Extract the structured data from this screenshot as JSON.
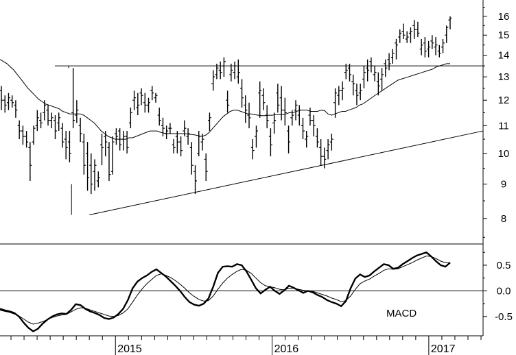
{
  "chart_data": [
    {
      "type": "ohlc",
      "panel": "price",
      "y_scale": "log",
      "ylim": [
        7.4,
        16.8
      ],
      "y_ticks": [
        8,
        9,
        10,
        11,
        12,
        13,
        14,
        15,
        16
      ],
      "x_range": [
        "2014-04",
        "2017-05"
      ],
      "x_ticks": [
        "2015",
        "2016",
        "2017"
      ],
      "ohlc": [
        [
          12.4,
          12.6,
          11.6,
          12.0
        ],
        [
          12.0,
          12.2,
          11.5,
          11.8
        ],
        [
          11.9,
          12.3,
          11.6,
          12.1
        ],
        [
          12.0,
          12.2,
          11.7,
          11.9
        ],
        [
          11.8,
          12.0,
          11.3,
          11.6
        ],
        [
          11.0,
          11.2,
          10.5,
          10.8
        ],
        [
          10.8,
          11.0,
          10.3,
          10.6
        ],
        [
          10.6,
          10.8,
          10.2,
          10.4
        ],
        [
          10.2,
          10.4,
          9.1,
          9.6
        ],
        [
          10.4,
          11.0,
          10.3,
          10.9
        ],
        [
          11.0,
          11.6,
          10.8,
          11.3
        ],
        [
          11.2,
          11.5,
          10.9,
          11.1
        ],
        [
          11.5,
          12.0,
          11.2,
          11.8
        ],
        [
          11.6,
          11.8,
          11.0,
          11.2
        ],
        [
          11.2,
          11.5,
          10.9,
          11.3
        ],
        [
          11.2,
          11.4,
          10.5,
          10.8
        ],
        [
          11.1,
          11.5,
          10.8,
          11.3
        ],
        [
          10.9,
          11.1,
          10.2,
          10.4
        ],
        [
          10.5,
          10.8,
          9.8,
          10.2
        ],
        [
          10.4,
          10.8,
          9.7,
          10.0
        ],
        [
          11.5,
          13.4,
          10.9,
          11.2
        ],
        [
          11.4,
          12.0,
          11.1,
          11.6
        ],
        [
          11.0,
          11.3,
          10.4,
          10.7
        ],
        [
          10.4,
          10.7,
          9.3,
          9.6
        ],
        [
          10.0,
          10.4,
          8.8,
          9.2
        ],
        [
          9.6,
          10.0,
          8.7,
          9.0
        ],
        [
          9.4,
          9.8,
          8.8,
          9.6
        ],
        [
          9.1,
          9.4,
          8.9,
          9.2
        ],
        [
          10.3,
          10.7,
          9.6,
          10.2
        ],
        [
          10.6,
          10.8,
          9.9,
          10.4
        ],
        [
          10.2,
          10.4,
          9.1,
          9.3
        ],
        [
          9.4,
          10.6,
          9.3,
          10.4
        ],
        [
          10.7,
          10.9,
          10.3,
          10.6
        ],
        [
          10.8,
          10.9,
          10.1,
          10.3
        ],
        [
          10.5,
          10.8,
          10.1,
          10.6
        ],
        [
          10.6,
          10.8,
          10.0,
          10.2
        ],
        [
          11.1,
          11.7,
          10.9,
          11.5
        ],
        [
          12.0,
          12.4,
          11.6,
          12.1
        ],
        [
          11.7,
          12.3,
          11.4,
          11.8
        ],
        [
          12.3,
          12.5,
          11.8,
          12.2
        ],
        [
          11.9,
          12.3,
          11.5,
          11.8
        ],
        [
          11.8,
          12.1,
          11.5,
          11.9
        ],
        [
          12.4,
          12.6,
          12.0,
          12.3
        ],
        [
          12.1,
          12.3,
          11.9,
          12.2
        ],
        [
          11.4,
          11.7,
          11.0,
          11.2
        ],
        [
          11.0,
          11.3,
          10.6,
          10.9
        ],
        [
          10.7,
          11.0,
          10.5,
          10.8
        ],
        [
          10.9,
          11.1,
          10.7,
          10.9
        ],
        [
          10.3,
          10.5,
          10.0,
          10.2
        ],
        [
          10.6,
          10.8,
          10.0,
          10.4
        ],
        [
          10.4,
          10.6,
          9.9,
          10.1
        ],
        [
          10.8,
          11.2,
          10.6,
          10.9
        ],
        [
          10.6,
          10.9,
          10.3,
          10.7
        ],
        [
          10.2,
          10.4,
          9.3,
          9.6
        ],
        [
          9.4,
          9.6,
          8.7,
          9.1
        ],
        [
          10.0,
          10.8,
          9.9,
          10.6
        ],
        [
          10.4,
          10.7,
          10.1,
          10.5
        ],
        [
          9.8,
          10.0,
          9.1,
          9.4
        ],
        [
          11.2,
          11.5,
          10.8,
          11.3
        ],
        [
          12.7,
          13.3,
          12.4,
          13.0
        ],
        [
          13.1,
          13.6,
          12.9,
          13.4
        ],
        [
          13.3,
          13.7,
          12.9,
          13.2
        ],
        [
          13.5,
          13.9,
          13.0,
          13.7
        ],
        [
          12.0,
          12.4,
          11.5,
          11.8
        ],
        [
          13.1,
          13.6,
          12.8,
          13.3
        ],
        [
          13.2,
          13.7,
          12.9,
          13.5
        ],
        [
          13.0,
          13.8,
          12.7,
          13.2
        ],
        [
          12.5,
          12.9,
          11.7,
          12.1
        ],
        [
          11.8,
          12.2,
          11.1,
          11.6
        ],
        [
          11.4,
          11.9,
          10.9,
          11.3
        ],
        [
          10.2,
          10.5,
          9.8,
          10.1
        ],
        [
          10.6,
          11.0,
          10.2,
          10.8
        ],
        [
          12.3,
          12.8,
          11.3,
          12.4
        ],
        [
          12.2,
          12.5,
          11.6,
          11.9
        ],
        [
          11.4,
          11.8,
          10.9,
          11.2
        ],
        [
          10.6,
          10.9,
          9.9,
          10.3
        ],
        [
          11.1,
          11.5,
          10.7,
          11.2
        ],
        [
          12.3,
          12.7,
          11.5,
          11.8
        ],
        [
          12.1,
          12.6,
          11.2,
          11.6
        ],
        [
          11.6,
          12.1,
          11.0,
          11.5
        ],
        [
          10.8,
          11.0,
          10.0,
          10.4
        ],
        [
          11.3,
          11.6,
          11.0,
          11.4
        ],
        [
          11.6,
          12.0,
          11.2,
          11.8
        ],
        [
          11.4,
          11.8,
          11.0,
          11.6
        ],
        [
          11.0,
          11.3,
          10.5,
          10.8
        ],
        [
          10.5,
          10.8,
          10.2,
          10.6
        ],
        [
          11.4,
          11.7,
          11.0,
          11.2
        ],
        [
          11.2,
          11.4,
          10.6,
          11.0
        ],
        [
          10.6,
          10.9,
          10.2,
          10.4
        ],
        [
          10.2,
          10.5,
          9.6,
          9.9
        ],
        [
          9.9,
          10.2,
          9.5,
          9.8
        ],
        [
          10.1,
          10.5,
          9.8,
          10.3
        ],
        [
          10.4,
          10.7,
          10.1,
          10.5
        ],
        [
          11.9,
          12.5,
          11.3,
          12.3
        ],
        [
          12.2,
          12.6,
          11.8,
          12.4
        ],
        [
          12.4,
          12.8,
          12.0,
          12.5
        ],
        [
          13.2,
          13.6,
          12.9,
          13.3
        ],
        [
          13.4,
          13.6,
          12.8,
          13.1
        ],
        [
          12.8,
          13.1,
          12.2,
          12.7
        ],
        [
          12.4,
          12.7,
          11.8,
          12.2
        ],
        [
          12.3,
          12.7,
          12.0,
          12.4
        ],
        [
          12.9,
          13.5,
          12.5,
          13.2
        ],
        [
          13.4,
          13.8,
          12.8,
          13.3
        ],
        [
          13.7,
          13.9,
          13.2,
          13.5
        ],
        [
          13.1,
          13.5,
          12.8,
          13.2
        ],
        [
          12.8,
          13.2,
          12.2,
          12.6
        ],
        [
          12.9,
          13.4,
          12.4,
          13.1
        ],
        [
          13.6,
          13.8,
          13.0,
          13.4
        ],
        [
          13.8,
          14.1,
          13.3,
          13.6
        ],
        [
          13.9,
          14.3,
          13.6,
          14.1
        ],
        [
          14.6,
          14.8,
          13.8,
          14.5
        ],
        [
          14.9,
          15.3,
          14.6,
          15.1
        ],
        [
          15.2,
          15.6,
          14.8,
          15.0
        ],
        [
          14.8,
          15.2,
          14.6,
          14.9
        ],
        [
          15.1,
          15.4,
          14.6,
          15.2
        ],
        [
          15.5,
          15.8,
          14.8,
          15.3
        ],
        [
          15.3,
          15.7,
          14.9,
          15.1
        ],
        [
          14.3,
          14.8,
          14.0,
          14.5
        ],
        [
          14.6,
          14.9,
          13.9,
          14.2
        ],
        [
          14.3,
          14.7,
          13.9,
          14.4
        ],
        [
          14.7,
          15.0,
          14.3,
          14.6
        ],
        [
          14.4,
          14.9,
          14.0,
          14.5
        ],
        [
          14.2,
          14.5,
          13.9,
          14.1
        ],
        [
          14.4,
          14.8,
          14.1,
          14.6
        ],
        [
          15.0,
          15.5,
          14.6,
          15.4
        ],
        [
          15.8,
          16.0,
          15.3,
          15.9
        ]
      ],
      "moving_average": [
        13.8,
        13.7,
        13.6,
        13.45,
        13.3,
        13.1,
        12.9,
        12.7,
        12.5,
        12.35,
        12.2,
        12.05,
        11.95,
        11.85,
        11.8,
        11.75,
        11.7,
        11.65,
        11.55,
        11.5,
        11.45,
        11.45,
        11.45,
        11.45,
        11.4,
        11.3,
        11.2,
        11.1,
        10.95,
        10.8,
        10.7,
        10.6,
        10.55,
        10.5,
        10.5,
        10.5,
        10.5,
        10.55,
        10.55,
        10.6,
        10.65,
        10.7,
        10.75,
        10.8,
        10.8,
        10.8,
        10.75,
        10.72,
        10.7,
        10.7,
        10.7,
        10.7,
        10.7,
        10.7,
        10.68,
        10.67,
        10.65,
        10.62,
        10.6,
        10.65,
        10.75,
        10.9,
        11.05,
        11.2,
        11.35,
        11.45,
        11.55,
        11.6,
        11.6,
        11.55,
        11.5,
        11.45,
        11.45,
        11.42,
        11.4,
        11.38,
        11.38,
        11.4,
        11.4,
        11.42,
        11.42,
        11.42,
        11.45,
        11.5,
        11.5,
        11.55,
        11.6,
        11.6,
        11.6,
        11.55,
        11.55,
        11.55,
        11.6,
        11.58,
        11.45,
        11.4,
        11.45,
        11.5,
        11.55,
        11.55,
        11.6,
        11.65,
        11.7,
        11.8,
        11.85,
        11.95,
        12.05,
        12.15,
        12.25,
        12.35,
        12.45,
        12.55,
        12.65,
        12.75,
        12.85,
        12.9,
        12.95,
        13.0,
        13.05,
        13.1,
        13.15,
        13.2,
        13.25,
        13.3,
        13.35,
        13.45,
        13.5,
        13.55,
        13.6,
        13.6
      ],
      "reference_lines": [
        {
          "kind": "horizontal",
          "y": 13.5
        },
        {
          "kind": "trendline",
          "points": [
            [
              0.185,
              8.1
            ],
            [
              1.0,
              10.8
            ]
          ]
        },
        {
          "kind": "vertical",
          "x": 0.148,
          "y_from": 8.1,
          "y_to": 9.0
        },
        {
          "kind": "vertical",
          "x": 0.142,
          "y_from": 13.4,
          "y_to": 13.5
        }
      ]
    },
    {
      "type": "line",
      "panel": "macd",
      "label": "MACD",
      "ylim": [
        -0.85,
        0.9
      ],
      "y_ticks": [
        -0.5,
        0.0,
        0.5
      ],
      "y_tick_labels": [
        "-0.5",
        "0.0",
        "0.5"
      ],
      "zero_line": true,
      "series": [
        {
          "style": "thick",
          "values": [
            -0.35,
            -0.38,
            -0.4,
            -0.43,
            -0.5,
            -0.62,
            -0.72,
            -0.79,
            -0.74,
            -0.64,
            -0.56,
            -0.5,
            -0.46,
            -0.44,
            -0.45,
            -0.37,
            -0.26,
            -0.28,
            -0.35,
            -0.4,
            -0.43,
            -0.47,
            -0.53,
            -0.55,
            -0.52,
            -0.45,
            -0.35,
            -0.18,
            0.05,
            0.18,
            0.25,
            0.3,
            0.37,
            0.42,
            0.35,
            0.28,
            0.19,
            0.1,
            0.0,
            -0.12,
            -0.22,
            -0.27,
            -0.29,
            -0.25,
            -0.15,
            0.08,
            0.35,
            0.47,
            0.48,
            0.47,
            0.52,
            0.5,
            0.38,
            0.22,
            0.05,
            -0.05,
            0.02,
            0.08,
            0.0,
            -0.06,
            0.01,
            0.1,
            0.06,
            0.01,
            -0.04,
            0.0,
            -0.03,
            -0.08,
            -0.12,
            -0.18,
            -0.22,
            -0.25,
            -0.3,
            -0.2,
            0.05,
            0.24,
            0.32,
            0.27,
            0.3,
            0.38,
            0.45,
            0.52,
            0.5,
            0.43,
            0.45,
            0.52,
            0.58,
            0.64,
            0.69,
            0.72,
            0.75,
            0.67,
            0.58,
            0.5,
            0.47,
            0.55
          ]
        },
        {
          "style": "thin",
          "values": [
            -0.38,
            -0.4,
            -0.42,
            -0.45,
            -0.49,
            -0.55,
            -0.61,
            -0.65,
            -0.63,
            -0.6,
            -0.56,
            -0.52,
            -0.49,
            -0.47,
            -0.46,
            -0.41,
            -0.36,
            -0.33,
            -0.34,
            -0.37,
            -0.4,
            -0.43,
            -0.46,
            -0.49,
            -0.5,
            -0.48,
            -0.43,
            -0.35,
            -0.22,
            -0.08,
            0.04,
            0.14,
            0.22,
            0.3,
            0.33,
            0.3,
            0.26,
            0.2,
            0.13,
            0.05,
            -0.04,
            -0.11,
            -0.17,
            -0.2,
            -0.19,
            -0.1,
            0.03,
            0.15,
            0.25,
            0.32,
            0.38,
            0.42,
            0.4,
            0.34,
            0.25,
            0.16,
            0.1,
            0.08,
            0.06,
            0.03,
            0.02,
            0.05,
            0.05,
            0.03,
            0.01,
            0.0,
            -0.01,
            -0.04,
            -0.07,
            -0.1,
            -0.14,
            -0.17,
            -0.21,
            -0.19,
            -0.1,
            0.03,
            0.14,
            0.19,
            0.23,
            0.29,
            0.34,
            0.4,
            0.43,
            0.42,
            0.43,
            0.47,
            0.51,
            0.55,
            0.6,
            0.64,
            0.68,
            0.67,
            0.63,
            0.58,
            0.55,
            0.55
          ]
        }
      ]
    }
  ]
}
